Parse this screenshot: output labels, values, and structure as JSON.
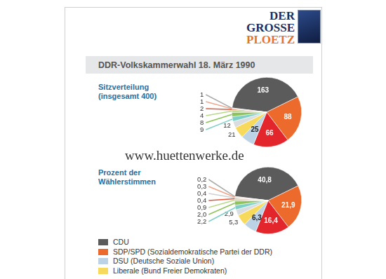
{
  "header": {
    "logo": [
      "DER",
      "GROSSE",
      "PLOETZ"
    ],
    "title": "DDR-Volkskammerwahl 18. März 1990"
  },
  "watermark": "www.huettenwerke.de",
  "chart_data": [
    {
      "type": "pie",
      "title": [
        "Sitzverteilung",
        "(insgesamt 400)"
      ],
      "categories": [
        "CDU",
        "SDP/SPD (Sozialdemokratische Partei der DDR)",
        null,
        "DSU (Deutsche Soziale Union)",
        "Liberale (Bund Freier Demokraten)",
        null,
        null,
        null,
        null,
        null,
        null,
        null
      ],
      "values": [
        163,
        88,
        66,
        25,
        21,
        12,
        9,
        8,
        4,
        2,
        1,
        1
      ],
      "colors": [
        "#5b5b5b",
        "#ec6a2c",
        "#e3262b",
        "#bcd3e6",
        "#f7d95c",
        "#d9dde0",
        "#7fcfc9",
        "#8dc35a",
        "#b9d98a",
        "#e2583a",
        "#f0a58a",
        "#aaaaaa"
      ],
      "data_labels": true,
      "legend": "bottom"
    },
    {
      "type": "pie",
      "title": [
        "Prozent der",
        "Wählerstimmen"
      ],
      "categories": [
        "CDU",
        "SDP/SPD (Sozialdemokratische Partei der DDR)",
        null,
        "DSU (Deutsche Soziale Union)",
        "Liberale (Bund Freier Demokraten)",
        null,
        null,
        null,
        null,
        null,
        null,
        null,
        null
      ],
      "values": [
        40.8,
        21.9,
        16.4,
        6.3,
        5.3,
        2.9,
        2.2,
        2.0,
        0.9,
        0.4,
        0.4,
        0.3,
        0.2
      ],
      "value_labels": [
        "40,8",
        "21,9",
        "16,4",
        "6,3",
        "5,3",
        "2,9",
        "2,2",
        "2,0",
        "0,9",
        "0,4",
        "0,4",
        "0,3",
        "0,2"
      ],
      "colors": [
        "#5b5b5b",
        "#ec6a2c",
        "#e3262b",
        "#bcd3e6",
        "#f7d95c",
        "#d9dde0",
        "#7fcfc9",
        "#8dc35a",
        "#b9d98a",
        "#e2583a",
        "#cfcfcf",
        "#f0a58a",
        "#aaaaaa"
      ],
      "data_labels": true
    }
  ]
}
